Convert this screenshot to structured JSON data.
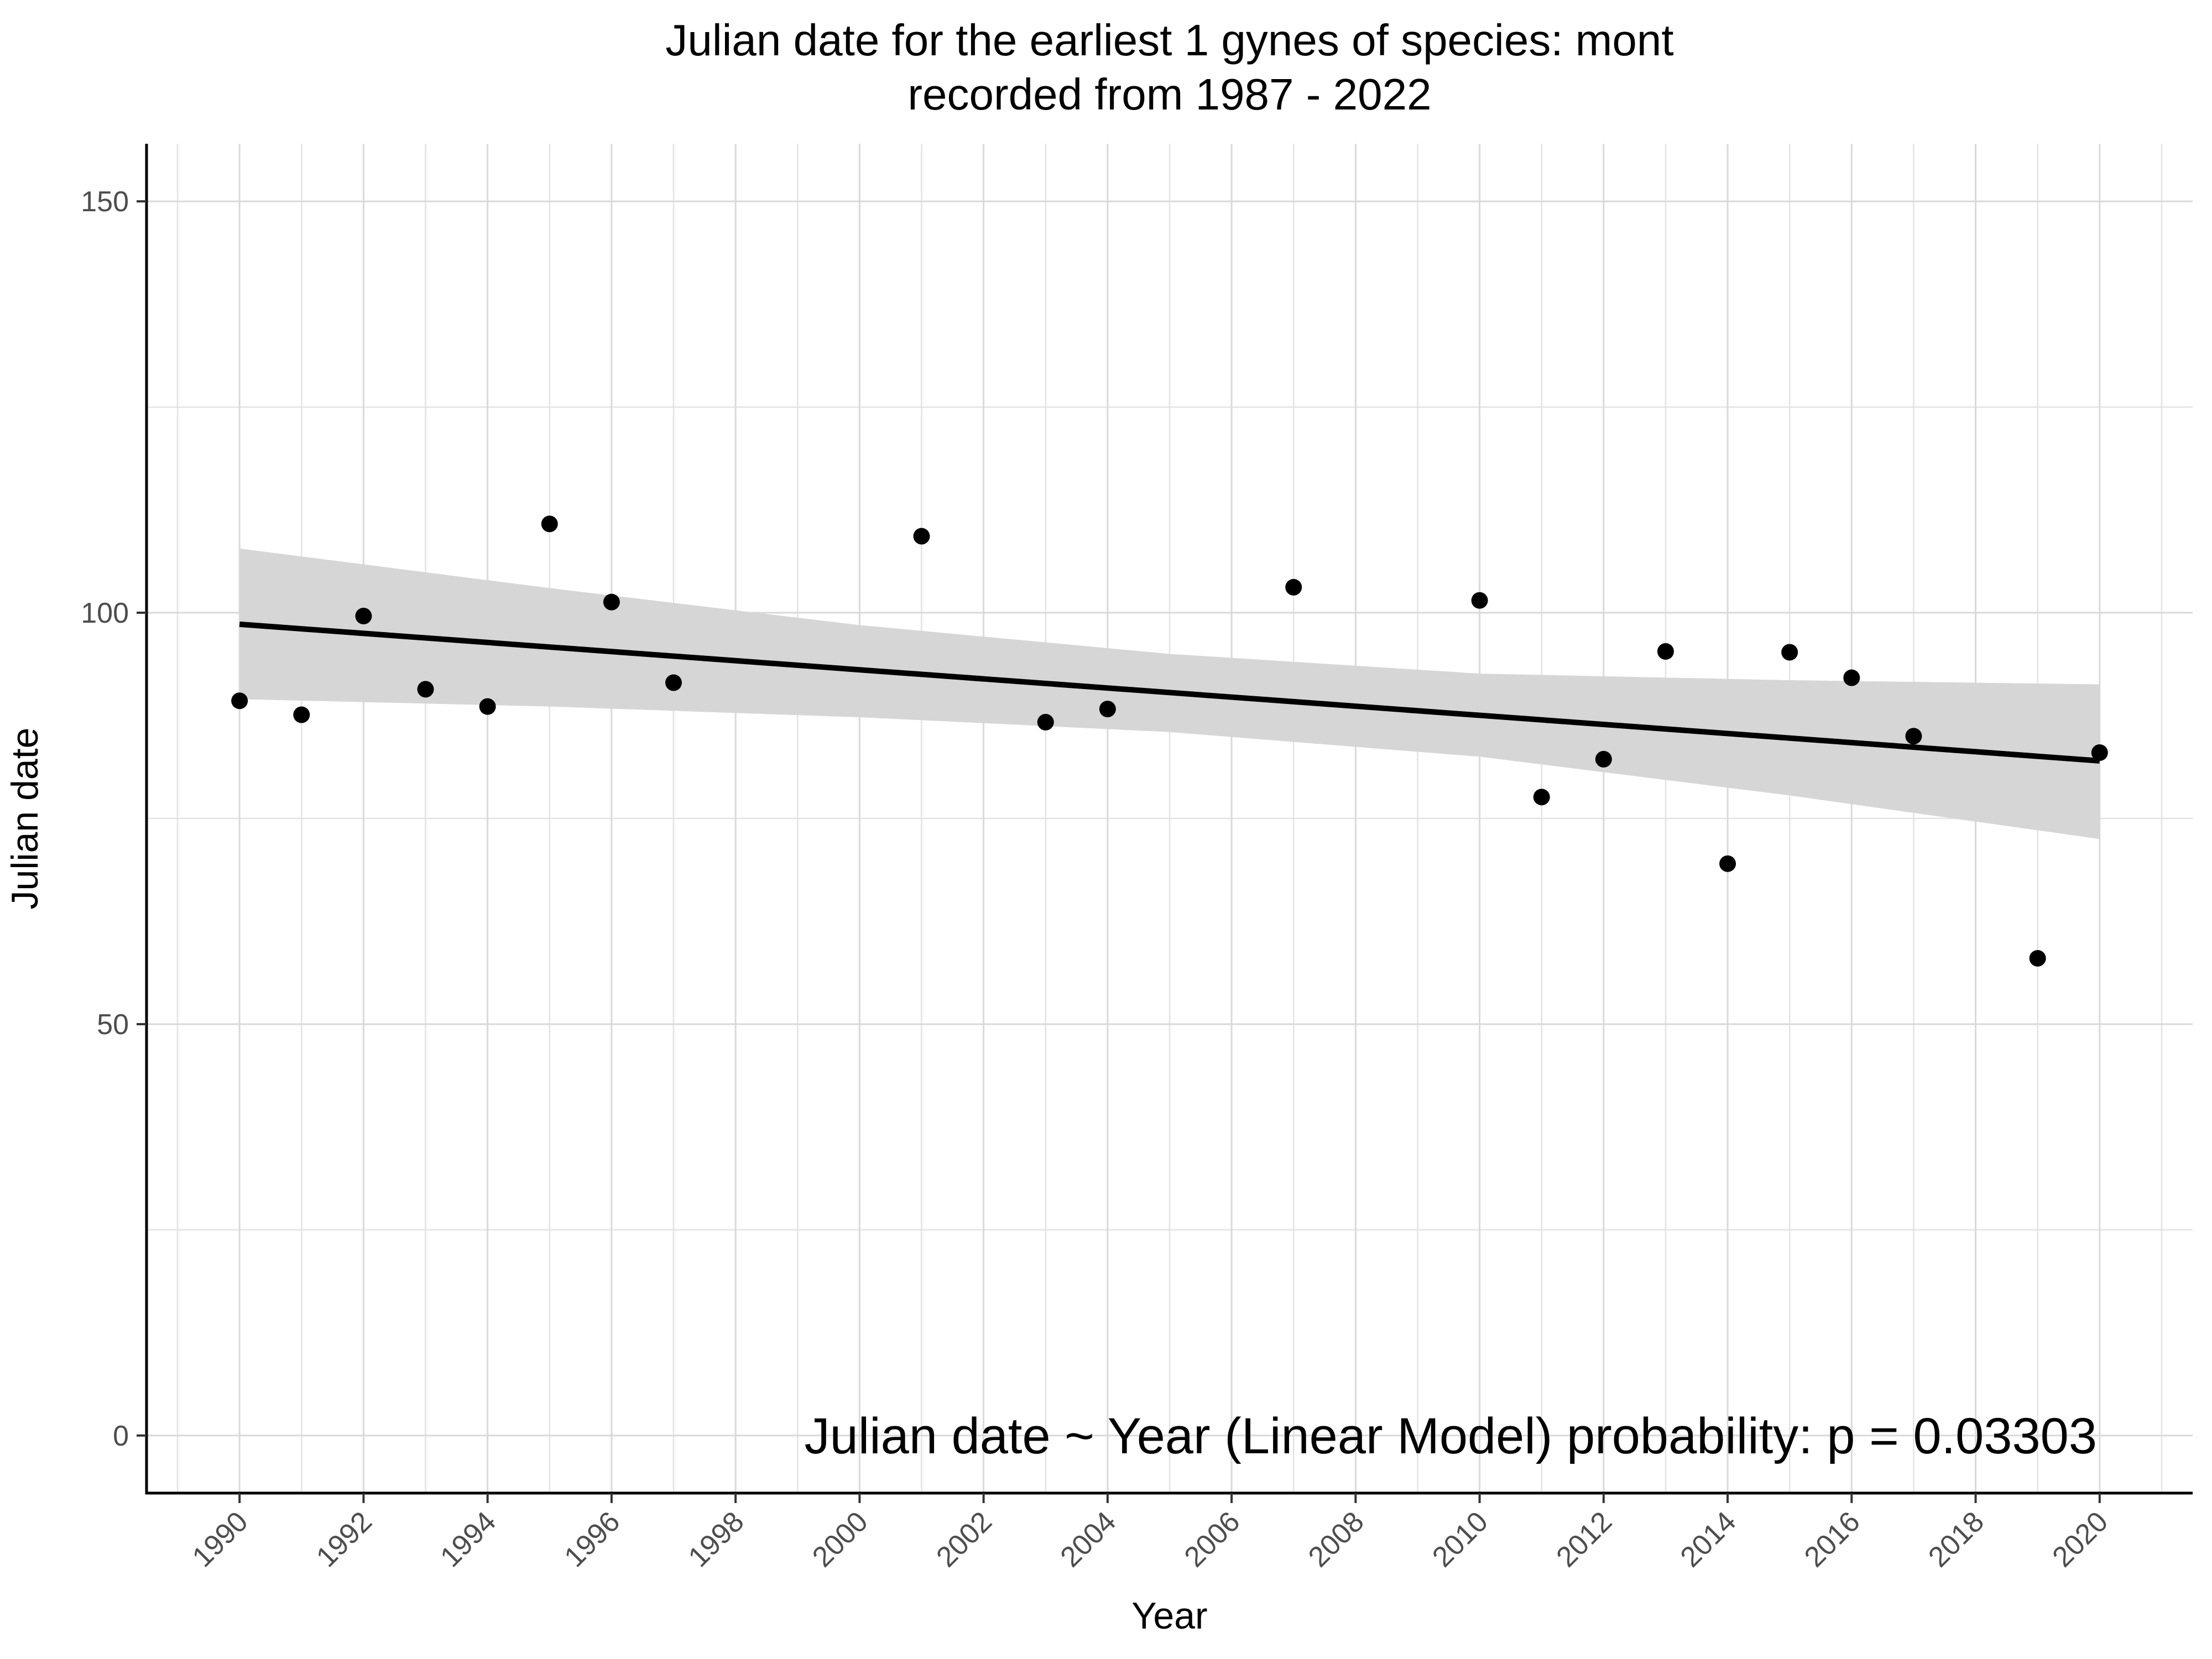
{
  "chart_data": {
    "type": "scatter",
    "title_lines": [
      "Julian date for the earliest 1 gynes of species: mont",
      "recorded from 1987 - 2022"
    ],
    "xlabel": "Year",
    "ylabel": "Julian date",
    "xlim": [
      1988.5,
      2021.5
    ],
    "ylim": [
      -7,
      157
    ],
    "x_ticks": [
      1990,
      1992,
      1994,
      1996,
      1998,
      2000,
      2002,
      2004,
      2006,
      2008,
      2010,
      2012,
      2014,
      2016,
      2018,
      2020
    ],
    "x_tick_labels": [
      "1990",
      "1992",
      "1994",
      "1996",
      "1998",
      "2000",
      "2002",
      "2004",
      "2006",
      "2008",
      "2010",
      "2012",
      "2014",
      "2016",
      "2018",
      "2020"
    ],
    "y_ticks": [
      0,
      50,
      100,
      150
    ],
    "y_tick_labels": [
      "0",
      "50",
      "100",
      "150"
    ],
    "grid": true,
    "points": {
      "x": [
        1990,
        1991,
        1992,
        1993,
        1994,
        1995,
        1996,
        1997,
        2001,
        2003,
        2004,
        2007,
        2010,
        2011,
        2012,
        2013,
        2014,
        2015,
        2016,
        2017,
        2019,
        2020
      ],
      "y": [
        89.3,
        87.6,
        99.6,
        90.7,
        88.6,
        110.8,
        101.3,
        91.5,
        109.3,
        86.7,
        88.3,
        103.1,
        101.5,
        77.6,
        82.2,
        95.3,
        69.5,
        95.2,
        92.1,
        85.0,
        58.0,
        83.0
      ]
    },
    "fit_line": {
      "label": "Linear Model",
      "x": [
        1990,
        2020
      ],
      "y": [
        98.6,
        82.0
      ]
    },
    "confidence_band": {
      "x": [
        1990,
        1995,
        2000,
        2005,
        2010,
        2015,
        2020
      ],
      "upper": [
        107.8,
        103.0,
        98.5,
        95.0,
        92.6,
        91.8,
        91.3
      ],
      "lower": [
        89.5,
        88.6,
        87.3,
        85.5,
        82.5,
        77.8,
        72.5
      ]
    },
    "annotation": "Julian date ~ Year (Linear Model) probability: p = 0.03303",
    "colors": {
      "points": "#000000",
      "fit_line": "#000000",
      "band": "#d6d6d6",
      "grid": "#d9d9d9"
    }
  }
}
